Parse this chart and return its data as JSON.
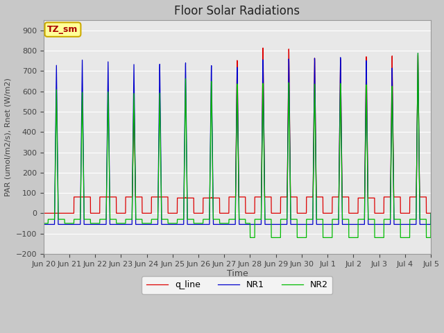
{
  "title": "Floor Solar Radiations",
  "xlabel": "Time",
  "ylabel": "PAR (umol/m2/s), Rnet (W/m2)",
  "ylim": [
    -200,
    950
  ],
  "yticks": [
    -200,
    -100,
    0,
    100,
    200,
    300,
    400,
    500,
    600,
    700,
    800,
    900
  ],
  "fig_bg_color": "#c8c8c8",
  "plot_bg_color": "#e8e8e8",
  "grid_color": "#ffffff",
  "line_colors": {
    "q_line": "#dd0000",
    "NR1": "#0000cc",
    "NR2": "#00bb00"
  },
  "annotation_text": "TZ_sm",
  "annotation_bg": "#ffff99",
  "annotation_border": "#ccaa00",
  "tick_labels": [
    "Jun 20",
    "Jun 21",
    "Jun 22",
    "Jun 23",
    "Jun 24",
    "Jun 25",
    "Jun 26",
    "Jun 27",
    "Jun 28",
    "Jun 29",
    "Jun 30",
    "Jul 1",
    "Jul 2",
    "Jul 3",
    "Jul 4",
    "Jul 5"
  ],
  "num_days": 15,
  "day_peaks_q": [
    0,
    80,
    80,
    600,
    80,
    80,
    80,
    780,
    840,
    830,
    780,
    770,
    780,
    780,
    780
  ],
  "day_peaks_NR1": [
    730,
    760,
    755,
    745,
    750,
    760,
    750,
    745,
    780,
    780,
    780,
    780,
    760,
    720,
    790
  ],
  "day_peaks_NR2": [
    610,
    600,
    605,
    600,
    605,
    680,
    670,
    660,
    660,
    660,
    650,
    650,
    640,
    630,
    790
  ],
  "day_flat_q": [
    0,
    80,
    80,
    80,
    80,
    75,
    75,
    80,
    80,
    80,
    80,
    80,
    75,
    80,
    80
  ],
  "day_flat_NR1": [
    -55,
    -55,
    -55,
    -55,
    -55,
    -55,
    -55,
    -55,
    -55,
    -55,
    -55,
    -55,
    -55,
    -55,
    -55
  ],
  "day_flat_NR2_night": [
    -50,
    -50,
    -50,
    -50,
    -50,
    -50,
    -50,
    -50,
    -120,
    -120,
    -120,
    -120,
    -120,
    -120,
    -120
  ],
  "day_flat_NR2_day": [
    -30,
    -30,
    -30,
    -30,
    -30,
    -30,
    -30,
    -30,
    -30,
    -30,
    -30,
    -30,
    -30,
    -30,
    -30
  ]
}
